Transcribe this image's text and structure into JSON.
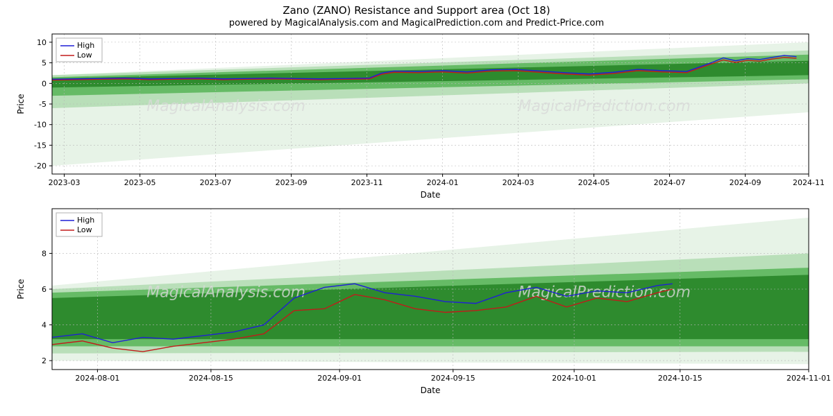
{
  "titles": {
    "main": "Zano (ZANO) Resistance and Support area (Oct 18)",
    "sub": "powered by MagicalAnalysis.com and MagicalPrediction.com and Predict-Price.com"
  },
  "watermarks": [
    "MagicalAnalysis.com",
    "MagicalPrediction.com"
  ],
  "legend": {
    "high": "High",
    "low": "Low"
  },
  "colors": {
    "high_line": "#1f1fd6",
    "low_line": "#c21a1a",
    "band_dark": "#2e8b2e",
    "band_mid": "#66bb66",
    "band_light": "#cde9cd",
    "grid": "#b8b8b8",
    "frame": "#000000",
    "background": "#ffffff"
  },
  "top_chart": {
    "type": "line-with-bands",
    "xlabel": "Date",
    "ylabel": "Price",
    "ylim": [
      -22,
      12
    ],
    "yticks": [
      -20,
      -15,
      -10,
      -5,
      0,
      5,
      10
    ],
    "x_range": [
      0,
      620
    ],
    "xticks": [
      {
        "pos": 10,
        "label": "2023-03"
      },
      {
        "pos": 72,
        "label": "2023-05"
      },
      {
        "pos": 134,
        "label": "2023-07"
      },
      {
        "pos": 196,
        "label": "2023-09"
      },
      {
        "pos": 258,
        "label": "2023-11"
      },
      {
        "pos": 320,
        "label": "2024-01"
      },
      {
        "pos": 382,
        "label": "2024-03"
      },
      {
        "pos": 444,
        "label": "2024-05"
      },
      {
        "pos": 506,
        "label": "2024-07"
      },
      {
        "pos": 568,
        "label": "2024-09"
      },
      {
        "pos": 620,
        "label": "2024-11"
      }
    ],
    "bands": [
      {
        "y1_start": -20,
        "y1_end": 2,
        "y2_start": -7,
        "y2_end": 10,
        "color": "#e7f3e7"
      },
      {
        "y1_start": -6,
        "y1_end": 2,
        "y2_start": 0,
        "y2_end": 8,
        "color": "#b9dfb9"
      },
      {
        "y1_start": -3,
        "y1_end": 1.5,
        "y2_start": 1,
        "y2_end": 7,
        "color": "#66bb66"
      },
      {
        "y1_start": -1,
        "y1_end": 1.2,
        "y2_start": 2,
        "y2_end": 5.5,
        "color": "#2e8b2e"
      }
    ],
    "high": [
      [
        0,
        1.0
      ],
      [
        20,
        1.1
      ],
      [
        40,
        1.2
      ],
      [
        60,
        1.3
      ],
      [
        80,
        1.1
      ],
      [
        100,
        1.2
      ],
      [
        120,
        1.3
      ],
      [
        140,
        1.1
      ],
      [
        160,
        1.2
      ],
      [
        180,
        1.3
      ],
      [
        200,
        1.2
      ],
      [
        220,
        1.1
      ],
      [
        240,
        1.2
      ],
      [
        260,
        1.3
      ],
      [
        270,
        2.5
      ],
      [
        280,
        3.0
      ],
      [
        300,
        2.9
      ],
      [
        320,
        3.1
      ],
      [
        340,
        2.8
      ],
      [
        360,
        3.3
      ],
      [
        380,
        3.4
      ],
      [
        400,
        3.0
      ],
      [
        420,
        2.6
      ],
      [
        440,
        2.3
      ],
      [
        460,
        2.7
      ],
      [
        480,
        3.4
      ],
      [
        500,
        3.1
      ],
      [
        520,
        2.9
      ],
      [
        540,
        5.0
      ],
      [
        550,
        6.2
      ],
      [
        560,
        5.5
      ],
      [
        570,
        6.0
      ],
      [
        580,
        5.8
      ],
      [
        590,
        6.3
      ],
      [
        600,
        6.8
      ],
      [
        610,
        6.5
      ]
    ],
    "low": [
      [
        0,
        0.8
      ],
      [
        20,
        0.9
      ],
      [
        40,
        1.0
      ],
      [
        60,
        1.1
      ],
      [
        80,
        0.9
      ],
      [
        100,
        1.0
      ],
      [
        120,
        1.1
      ],
      [
        140,
        0.9
      ],
      [
        160,
        1.0
      ],
      [
        180,
        1.1
      ],
      [
        200,
        1.0
      ],
      [
        220,
        0.9
      ],
      [
        240,
        1.0
      ],
      [
        260,
        1.1
      ],
      [
        270,
        2.2
      ],
      [
        280,
        2.7
      ],
      [
        300,
        2.6
      ],
      [
        320,
        2.8
      ],
      [
        340,
        2.5
      ],
      [
        360,
        3.0
      ],
      [
        380,
        3.1
      ],
      [
        400,
        2.7
      ],
      [
        420,
        2.3
      ],
      [
        440,
        2.0
      ],
      [
        460,
        2.4
      ],
      [
        480,
        3.1
      ],
      [
        500,
        2.8
      ],
      [
        520,
        2.6
      ],
      [
        540,
        4.7
      ],
      [
        550,
        5.7
      ],
      [
        560,
        5.1
      ],
      [
        570,
        5.6
      ],
      [
        580,
        5.4
      ],
      [
        590,
        5.9
      ],
      [
        600,
        6.3
      ],
      [
        610,
        6.1
      ]
    ]
  },
  "bottom_chart": {
    "type": "line-with-bands",
    "xlabel": "Date",
    "ylabel": "Price",
    "ylim": [
      1.5,
      10.5
    ],
    "yticks": [
      2,
      4,
      6,
      8
    ],
    "x_range": [
      0,
      100
    ],
    "xticks": [
      {
        "pos": 6,
        "label": "2024-08-01"
      },
      {
        "pos": 21,
        "label": "2024-08-15"
      },
      {
        "pos": 38,
        "label": "2024-09-01"
      },
      {
        "pos": 53,
        "label": "2024-09-15"
      },
      {
        "pos": 69,
        "label": "2024-10-01"
      },
      {
        "pos": 83,
        "label": "2024-10-15"
      },
      {
        "pos": 100,
        "label": "2024-11-01"
      }
    ],
    "bands": [
      {
        "y1_start": 2.0,
        "y1_end": 6.2,
        "y2_start": 1.8,
        "y2_end": 10.0,
        "color": "#e7f3e7"
      },
      {
        "y1_start": 2.4,
        "y1_end": 6.0,
        "y2_start": 2.5,
        "y2_end": 8.0,
        "color": "#b9dfb9"
      },
      {
        "y1_start": 2.8,
        "y1_end": 5.8,
        "y2_start": 2.8,
        "y2_end": 7.2,
        "color": "#66bb66"
      },
      {
        "y1_start": 3.2,
        "y1_end": 5.5,
        "y2_start": 3.2,
        "y2_end": 6.8,
        "color": "#2e8b2e"
      }
    ],
    "high": [
      [
        0,
        3.3
      ],
      [
        4,
        3.5
      ],
      [
        8,
        3.0
      ],
      [
        12,
        3.3
      ],
      [
        16,
        3.2
      ],
      [
        20,
        3.4
      ],
      [
        24,
        3.6
      ],
      [
        28,
        4.0
      ],
      [
        32,
        5.5
      ],
      [
        36,
        6.1
      ],
      [
        40,
        6.3
      ],
      [
        44,
        5.8
      ],
      [
        48,
        5.6
      ],
      [
        52,
        5.3
      ],
      [
        56,
        5.2
      ],
      [
        60,
        5.8
      ],
      [
        64,
        6.1
      ],
      [
        68,
        5.6
      ],
      [
        72,
        5.9
      ],
      [
        76,
        5.8
      ],
      [
        80,
        6.2
      ],
      [
        82,
        6.3
      ]
    ],
    "low": [
      [
        0,
        2.9
      ],
      [
        4,
        3.1
      ],
      [
        8,
        2.7
      ],
      [
        12,
        2.5
      ],
      [
        16,
        2.8
      ],
      [
        20,
        3.0
      ],
      [
        24,
        3.2
      ],
      [
        28,
        3.5
      ],
      [
        32,
        4.8
      ],
      [
        36,
        4.9
      ],
      [
        40,
        5.7
      ],
      [
        44,
        5.4
      ],
      [
        48,
        4.9
      ],
      [
        52,
        4.7
      ],
      [
        56,
        4.8
      ],
      [
        60,
        5.0
      ],
      [
        64,
        5.6
      ],
      [
        68,
        5.0
      ],
      [
        72,
        5.5
      ],
      [
        76,
        5.3
      ],
      [
        80,
        5.8
      ],
      [
        82,
        6.0
      ]
    ]
  }
}
